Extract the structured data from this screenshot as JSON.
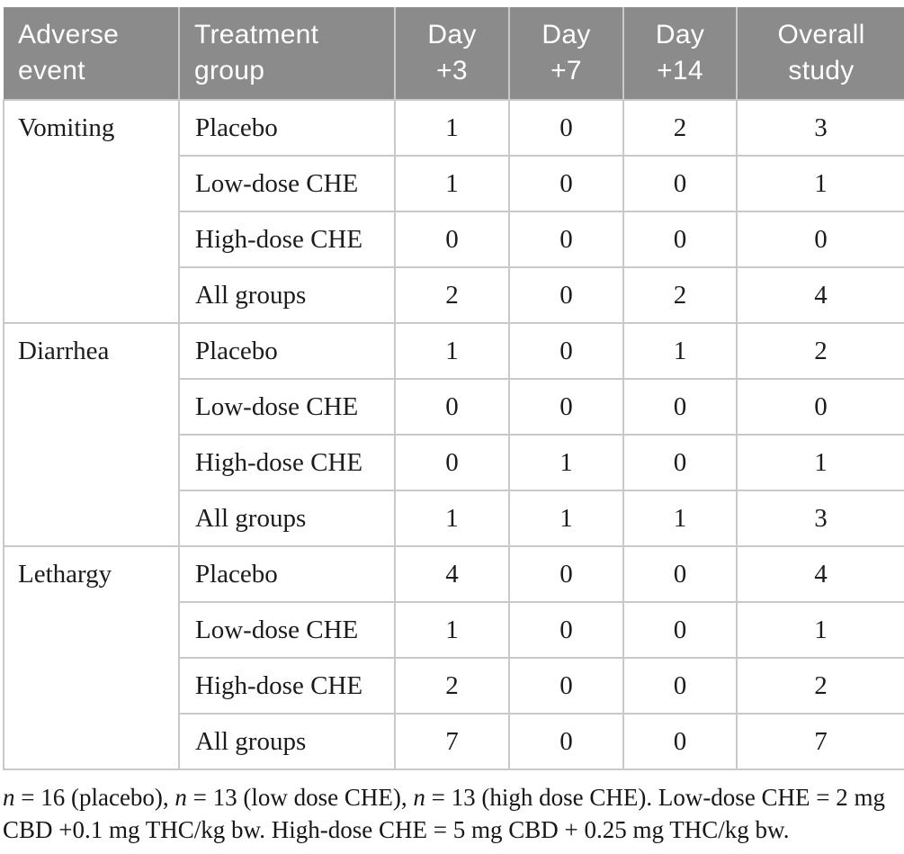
{
  "table": {
    "header": {
      "columns": [
        {
          "label": "Adverse\nevent",
          "align": "left"
        },
        {
          "label": "Treatment\ngroup",
          "align": "left"
        },
        {
          "label": "Day\n+3",
          "align": "center"
        },
        {
          "label": "Day\n+7",
          "align": "center"
        },
        {
          "label": "Day\n+14",
          "align": "center"
        },
        {
          "label": "Overall\nstudy",
          "align": "center"
        }
      ]
    },
    "sections": [
      {
        "adverse_event": "Vomiting",
        "rows": [
          {
            "treatment_group": "Placebo",
            "day_3": "1",
            "day_7": "0",
            "day_14": "2",
            "overall_study": "3"
          },
          {
            "treatment_group": "Low-dose CHE",
            "day_3": "1",
            "day_7": "0",
            "day_14": "0",
            "overall_study": "1"
          },
          {
            "treatment_group": "High-dose CHE",
            "day_3": "0",
            "day_7": "0",
            "day_14": "0",
            "overall_study": "0"
          },
          {
            "treatment_group": "All groups",
            "day_3": "2",
            "day_7": "0",
            "day_14": "2",
            "overall_study": "4"
          }
        ]
      },
      {
        "adverse_event": "Diarrhea",
        "rows": [
          {
            "treatment_group": "Placebo",
            "day_3": "1",
            "day_7": "0",
            "day_14": "1",
            "overall_study": "2"
          },
          {
            "treatment_group": "Low-dose CHE",
            "day_3": "0",
            "day_7": "0",
            "day_14": "0",
            "overall_study": "0"
          },
          {
            "treatment_group": "High-dose CHE",
            "day_3": "0",
            "day_7": "1",
            "day_14": "0",
            "overall_study": "1"
          },
          {
            "treatment_group": "All groups",
            "day_3": "1",
            "day_7": "1",
            "day_14": "1",
            "overall_study": "3"
          }
        ]
      },
      {
        "adverse_event": "Lethargy",
        "rows": [
          {
            "treatment_group": "Placebo",
            "day_3": "4",
            "day_7": "0",
            "day_14": "0",
            "overall_study": "4"
          },
          {
            "treatment_group": "Low-dose CHE",
            "day_3": "1",
            "day_7": "0",
            "day_14": "0",
            "overall_study": "1"
          },
          {
            "treatment_group": "High-dose CHE",
            "day_3": "2",
            "day_7": "0",
            "day_14": "0",
            "overall_study": "2"
          },
          {
            "treatment_group": "All groups",
            "day_3": "7",
            "day_7": "0",
            "day_14": "0",
            "overall_study": "7"
          }
        ]
      }
    ]
  },
  "footnote": {
    "segments": [
      {
        "text": "n",
        "italic": true
      },
      {
        "text": " = 16 (placebo), ",
        "italic": false
      },
      {
        "text": "n",
        "italic": true
      },
      {
        "text": " = 13 (low dose CHE), ",
        "italic": false
      },
      {
        "text": "n",
        "italic": true
      },
      {
        "text": " = 13 (high dose CHE). Low-dose CHE = 2 mg CBD +0.1 mg THC/kg bw. High-dose CHE = 5 mg CBD + 0.25 mg THC/kg bw.",
        "italic": false
      }
    ]
  },
  "colors": {
    "header_bg": "#8b8b8b",
    "header_text": "#ffffff",
    "border": "#c9c9c9",
    "body_text": "#1c1c1c"
  }
}
